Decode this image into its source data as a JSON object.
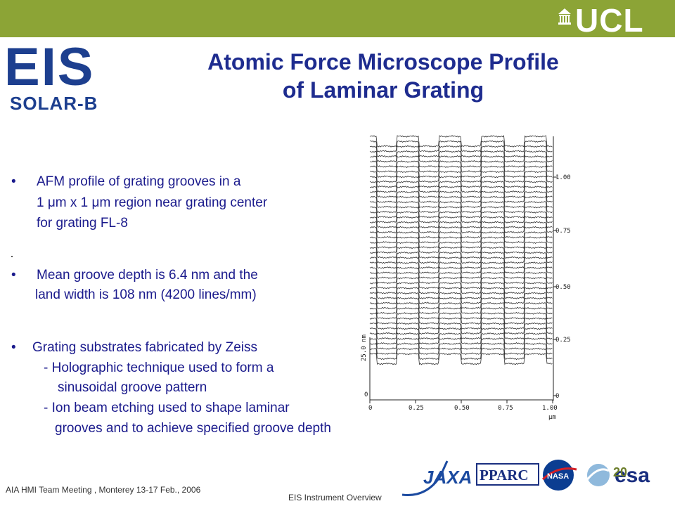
{
  "header": {
    "ucl_logo_text": "UCL"
  },
  "eis_logo": {
    "main": "EIS",
    "sub": "SOLAR-B"
  },
  "title": {
    "line1": "Atomic Force Microscope Profile",
    "line2": "of Laminar Grating"
  },
  "bullets": [
    {
      "lines": [
        "AFM profile of grating grooves in a",
        "1 μm x 1 μm region near grating center",
        " for grating FL-8"
      ]
    },
    {
      "lines": [
        "Mean groove depth is 6.4 nm and the",
        "land width is 108 nm (4200 lines/mm)"
      ]
    },
    {
      "lines": [
        "Grating substrates fabricated by Zeiss",
        "- Holographic technique used to form a",
        "sinusoidal groove pattern",
        "- Ion beam etching used to shape laminar",
        "grooves and to achieve specified groove depth"
      ]
    }
  ],
  "bullet_symbol": "•",
  "figure": {
    "y_right_ticks": [
      "1.00",
      "0.75",
      "0.50",
      "0.25",
      "0"
    ],
    "y_left_label": "25.0 nm",
    "y_left_zero": "0",
    "x_ticks": [
      "0",
      "0.25",
      "0.50",
      "0.75",
      "1.00"
    ],
    "x_unit": "μm"
  },
  "footer": {
    "left": "AIA HMI Team Meeting , Monterey  13-17 Feb., 2006",
    "center": "EIS Instrument Overview",
    "page_number": "20"
  },
  "partner_logos": {
    "jaxa": "JAXA",
    "pparc": "PPARC",
    "nasa": "NASA",
    "esa": "esa"
  },
  "colors": {
    "topbar": "#8ca436",
    "title": "#1e2c8f",
    "body_text": "#1a1a8c",
    "eis_blue": "#1d3f8f"
  }
}
